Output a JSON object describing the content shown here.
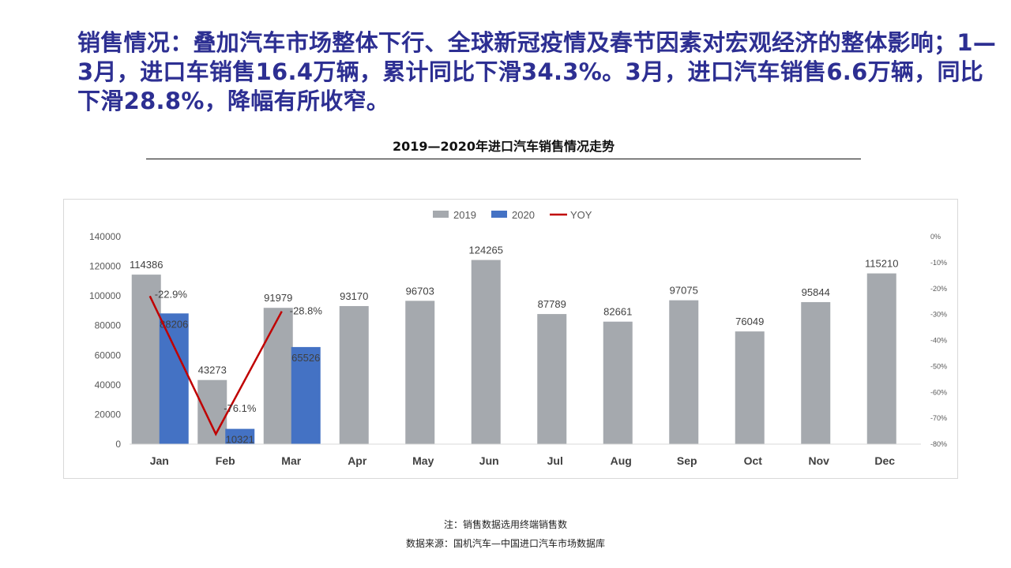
{
  "headline": "销售情况：叠加汽车市场整体下行、全球新冠疫情及春节因素对宏观经济的整体影响；1—3月，进口车销售16.4万辆，累计同比下滑34.3%。3月，进口汽车销售6.6万辆，同比下滑28.8%，降幅有所收窄。",
  "colors": {
    "s2019": "#a5a9ae",
    "s2020": "#4472c4",
    "yoy": "#c00000",
    "headline": "#2d2f92"
  },
  "notes": {
    "note1": "注：销售数据选用终端销售数",
    "note2": "数据来源：国机汽车—中国进口汽车市场数据库"
  },
  "chart_data": {
    "type": "bar",
    "title": "2019—2020年进口汽车销售情况走势",
    "categories": [
      "Jan",
      "Feb",
      "Mar",
      "Apr",
      "May",
      "Jun",
      "Jul",
      "Aug",
      "Sep",
      "Oct",
      "Nov",
      "Dec"
    ],
    "series": [
      {
        "name": "2019",
        "type": "bar",
        "values": [
          114386,
          43273,
          91979,
          93170,
          96703,
          124265,
          87789,
          82661,
          97075,
          76049,
          95844,
          115210
        ]
      },
      {
        "name": "2020",
        "type": "bar",
        "values": [
          88206,
          10321,
          65526,
          null,
          null,
          null,
          null,
          null,
          null,
          null,
          null,
          null
        ]
      },
      {
        "name": "YOY",
        "type": "line",
        "axis": "right",
        "values": [
          -22.9,
          -76.1,
          -28.8,
          null,
          null,
          null,
          null,
          null,
          null,
          null,
          null,
          null
        ],
        "labels": [
          "-22.9%",
          "-76.1%",
          "-28.8%"
        ]
      }
    ],
    "ylim": [
      0,
      140000
    ],
    "yticks": [
      "0",
      "20000",
      "40000",
      "60000",
      "80000",
      "100000",
      "120000",
      "140000"
    ],
    "y2lim": [
      -80,
      0
    ],
    "y2ticks": [
      "0%",
      "-10%",
      "-20%",
      "-30%",
      "-40%",
      "-50%",
      "-60%",
      "-70%",
      "-80%"
    ],
    "legend": "top-center",
    "grid": false
  }
}
